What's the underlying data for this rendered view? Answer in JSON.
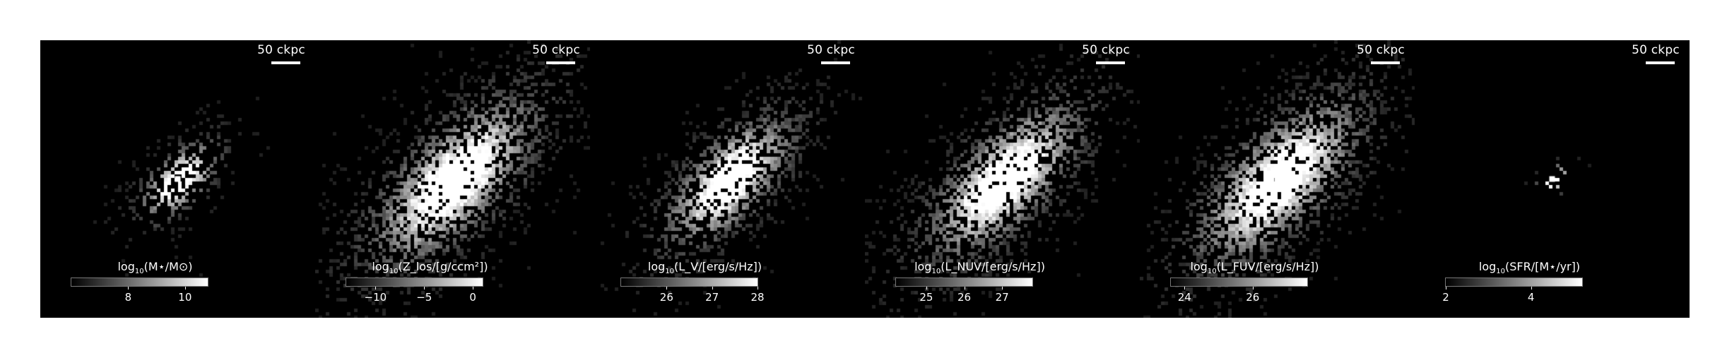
{
  "panels": [
    {
      "scale_label": "50 ckpc",
      "cbar_prefix": "log",
      "cbar_sub": "10",
      "cbar_text": "(M⋆/M⊙)",
      "ticks": [
        {
          "value": 8,
          "label": "8"
        },
        {
          "value": 10,
          "label": "10"
        }
      ],
      "range": [
        6,
        10.8
      ],
      "look": {
        "sigma": 0.09,
        "density": 0.55,
        "peak": 1.0,
        "diag": 0.6
      }
    },
    {
      "scale_label": "50 ckpc",
      "cbar_prefix": "log",
      "cbar_sub": "10",
      "cbar_text": "(Z_los/[g/ccm²])",
      "ticks": [
        {
          "value": -10,
          "label": "−10"
        },
        {
          "value": -5,
          "label": "−5"
        },
        {
          "value": 0,
          "label": "0"
        }
      ],
      "range": [
        -13,
        1
      ],
      "look": {
        "sigma": 0.16,
        "density": 0.95,
        "peak": 1.0,
        "diag": 1.0
      }
    },
    {
      "scale_label": "50 ckpc",
      "cbar_prefix": "log",
      "cbar_sub": "10",
      "cbar_text": "(L_V/[erg/s/Hz])",
      "ticks": [
        {
          "value": 26,
          "label": "26"
        },
        {
          "value": 27,
          "label": "27"
        },
        {
          "value": 28,
          "label": "28"
        }
      ],
      "range": [
        25,
        28
      ],
      "look": {
        "sigma": 0.13,
        "density": 0.85,
        "peak": 1.0,
        "diag": 0.9
      }
    },
    {
      "scale_label": "50 ckpc",
      "cbar_prefix": "log",
      "cbar_sub": "10",
      "cbar_text": "(L_NUV/[erg/s/Hz])",
      "ticks": [
        {
          "value": 25,
          "label": "25"
        },
        {
          "value": 26,
          "label": "26"
        },
        {
          "value": 27,
          "label": "27"
        }
      ],
      "range": [
        24.2,
        27.8
      ],
      "look": {
        "sigma": 0.15,
        "density": 0.9,
        "peak": 1.0,
        "diag": 1.0
      }
    },
    {
      "scale_label": "50 ckpc",
      "cbar_prefix": "log",
      "cbar_sub": "10",
      "cbar_text": "(L_FUV/[erg/s/Hz])",
      "ticks": [
        {
          "value": 24,
          "label": "24"
        },
        {
          "value": 26,
          "label": "26"
        }
      ],
      "range": [
        23.6,
        27.6
      ],
      "look": {
        "sigma": 0.16,
        "density": 0.9,
        "peak": 1.0,
        "diag": 1.0
      }
    },
    {
      "scale_label": "50 ckpc",
      "cbar_prefix": "log",
      "cbar_sub": "10",
      "cbar_text": "(SFR/[M⋆/yr])",
      "ticks": [
        {
          "value": 2,
          "label": "2"
        },
        {
          "value": 4,
          "label": "4"
        }
      ],
      "range": [
        2,
        5.2
      ],
      "look": {
        "sigma": 0.05,
        "density": 0.12,
        "peak": 1.0,
        "diag": 0.2
      }
    }
  ]
}
